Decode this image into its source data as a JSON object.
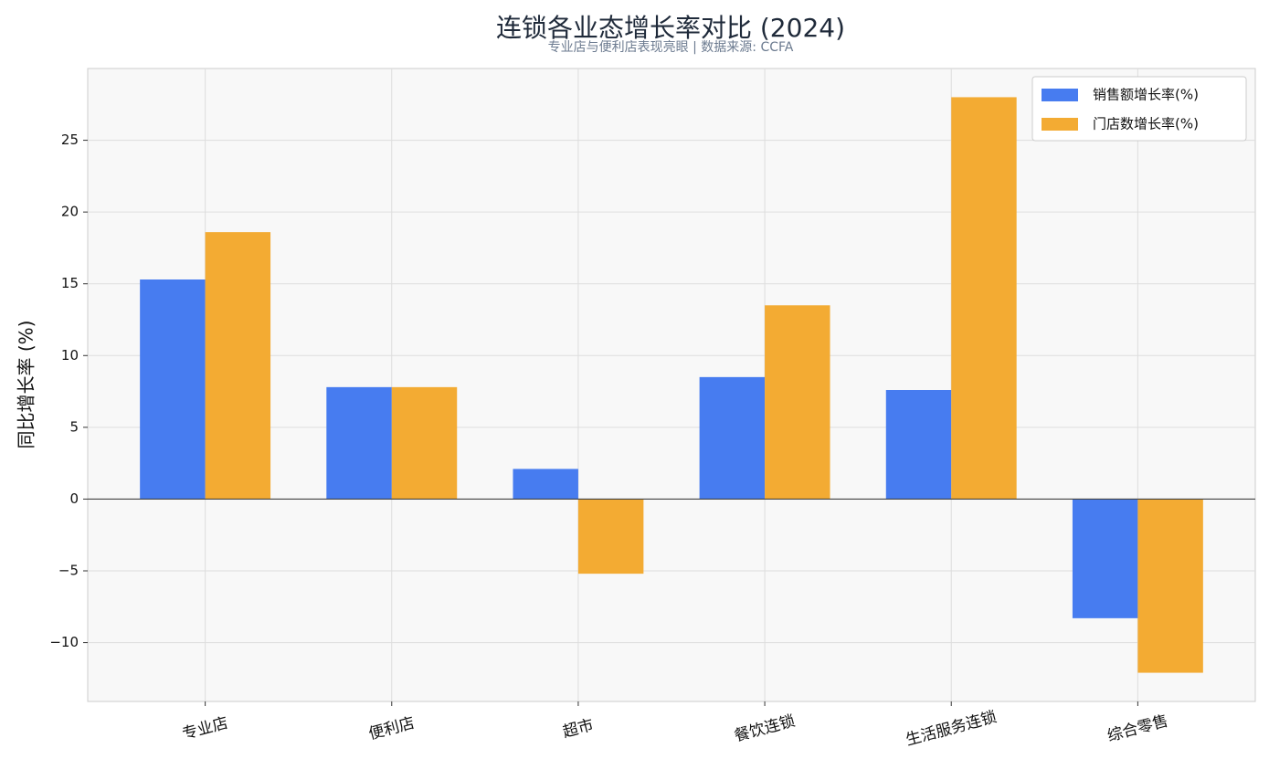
{
  "chart_data": {
    "type": "bar",
    "title": "连锁各业态增长率对比 (2024)",
    "subtitle": "专业店与便利店表现亮眼 | 数据来源: CCFA",
    "y_label": "同比增长率 (%)",
    "categories": [
      "专业店",
      "便利店",
      "超市",
      "餐饮连锁",
      "生活服务连锁",
      "综合零售"
    ],
    "series": [
      {
        "name": "销售额增长率(%)",
        "color": "#477cf0",
        "values": [
          15.3,
          7.8,
          2.1,
          8.5,
          7.6,
          -8.3
        ]
      },
      {
        "name": "门店数增长率(%)",
        "color": "#f3ab33",
        "values": [
          18.6,
          7.8,
          -5.2,
          13.5,
          28.0,
          -12.1
        ]
      }
    ],
    "ylim": [
      -14.1,
      30
    ],
    "yticks": [
      {
        "value": -10,
        "label": "−10"
      },
      {
        "value": -5,
        "label": "−5"
      },
      0,
      5,
      10,
      15,
      20,
      25
    ],
    "grid": true,
    "legend": "upper right"
  }
}
